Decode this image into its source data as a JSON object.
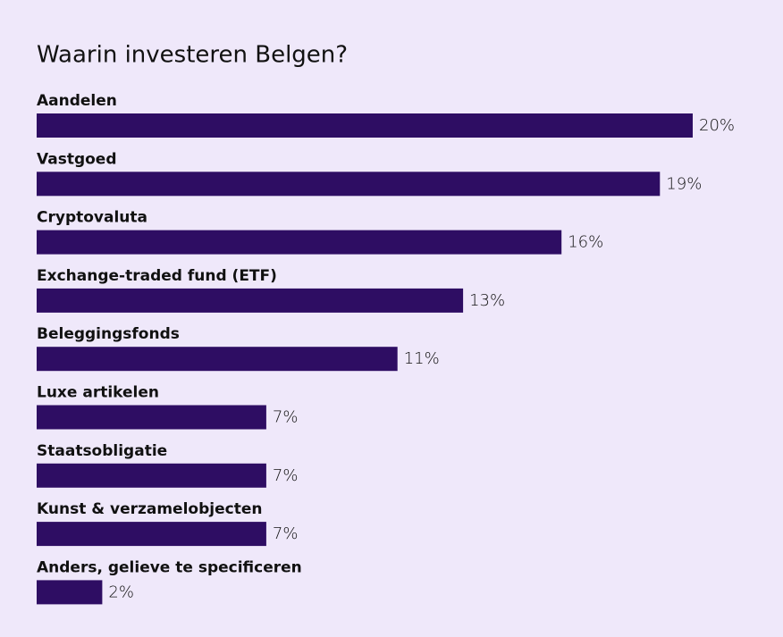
{
  "chart_data": {
    "type": "bar",
    "orientation": "horizontal",
    "title": "Waarin investeren Belgen?",
    "categories": [
      "Aandelen",
      "Vastgoed",
      "Cryptovaluta",
      "Exchange-traded fund (ETF)",
      "Beleggingsfonds",
      "Luxe artikelen",
      "Staatsobligatie",
      "Kunst & verzamelobjecten",
      "Anders, gelieve te specificeren"
    ],
    "values": [
      20,
      19,
      16,
      13,
      11,
      7,
      7,
      7,
      2
    ],
    "value_labels": [
      "20%",
      "19%",
      "16%",
      "13%",
      "11%",
      "7%",
      "7%",
      "7%",
      "2%"
    ],
    "color": "#2e0d63"
  }
}
